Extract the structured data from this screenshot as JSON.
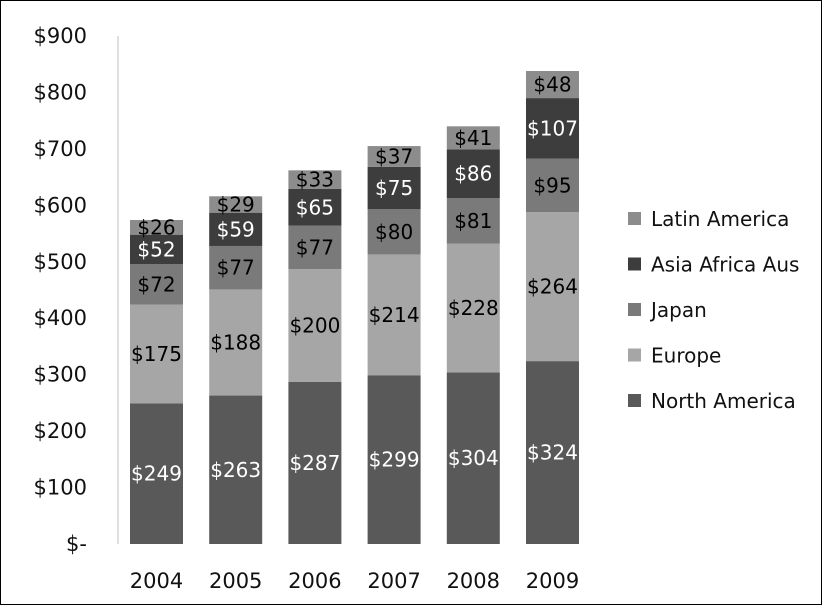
{
  "chart_data": {
    "type": "bar",
    "stacked": true,
    "categories": [
      "2004",
      "2005",
      "2006",
      "2007",
      "2008",
      "2009"
    ],
    "series": [
      {
        "name": "North America",
        "color": "#595959",
        "label_color": "#ffffff",
        "values": [
          249,
          263,
          287,
          299,
          304,
          324
        ],
        "labels": [
          "$249",
          "$263",
          "$287",
          "$299",
          "$304",
          "$324"
        ]
      },
      {
        "name": "Europe",
        "color": "#a6a6a6",
        "label_color": "#000000",
        "values": [
          175,
          188,
          200,
          214,
          228,
          264
        ],
        "labels": [
          "$175",
          "$188",
          "$200",
          "$214",
          "$228",
          "$264"
        ]
      },
      {
        "name": "Japan",
        "color": "#7a7a7a",
        "label_color": "#000000",
        "values": [
          72,
          77,
          77,
          80,
          81,
          95
        ],
        "labels": [
          "$72",
          "$77",
          "$77",
          "$80",
          "$81",
          "$95"
        ]
      },
      {
        "name": "Asia Africa Aus",
        "color": "#3d3d3d",
        "label_color": "#ffffff",
        "values": [
          52,
          59,
          65,
          75,
          86,
          107
        ],
        "labels": [
          "$52",
          "$59",
          "$65",
          "$75",
          "$86",
          "$107"
        ]
      },
      {
        "name": "Latin America",
        "color": "#8c8c8c",
        "label_color": "#000000",
        "values": [
          26,
          29,
          33,
          37,
          41,
          48
        ],
        "labels": [
          "$26",
          "$29",
          "$33",
          "$37",
          "$41",
          "$48"
        ]
      }
    ],
    "yticks": [
      0,
      100,
      200,
      300,
      400,
      500,
      600,
      700,
      800,
      900
    ],
    "ytick_labels": [
      "$-",
      "$100",
      "$200",
      "$300",
      "$400",
      "$500",
      "$600",
      "$700",
      "$800",
      "$900"
    ],
    "ylim": [
      0,
      900
    ],
    "grid": false,
    "legend_position": "right",
    "legend_order": [
      "Latin America",
      "Asia Africa Aus",
      "Japan",
      "Europe",
      "North America"
    ]
  }
}
